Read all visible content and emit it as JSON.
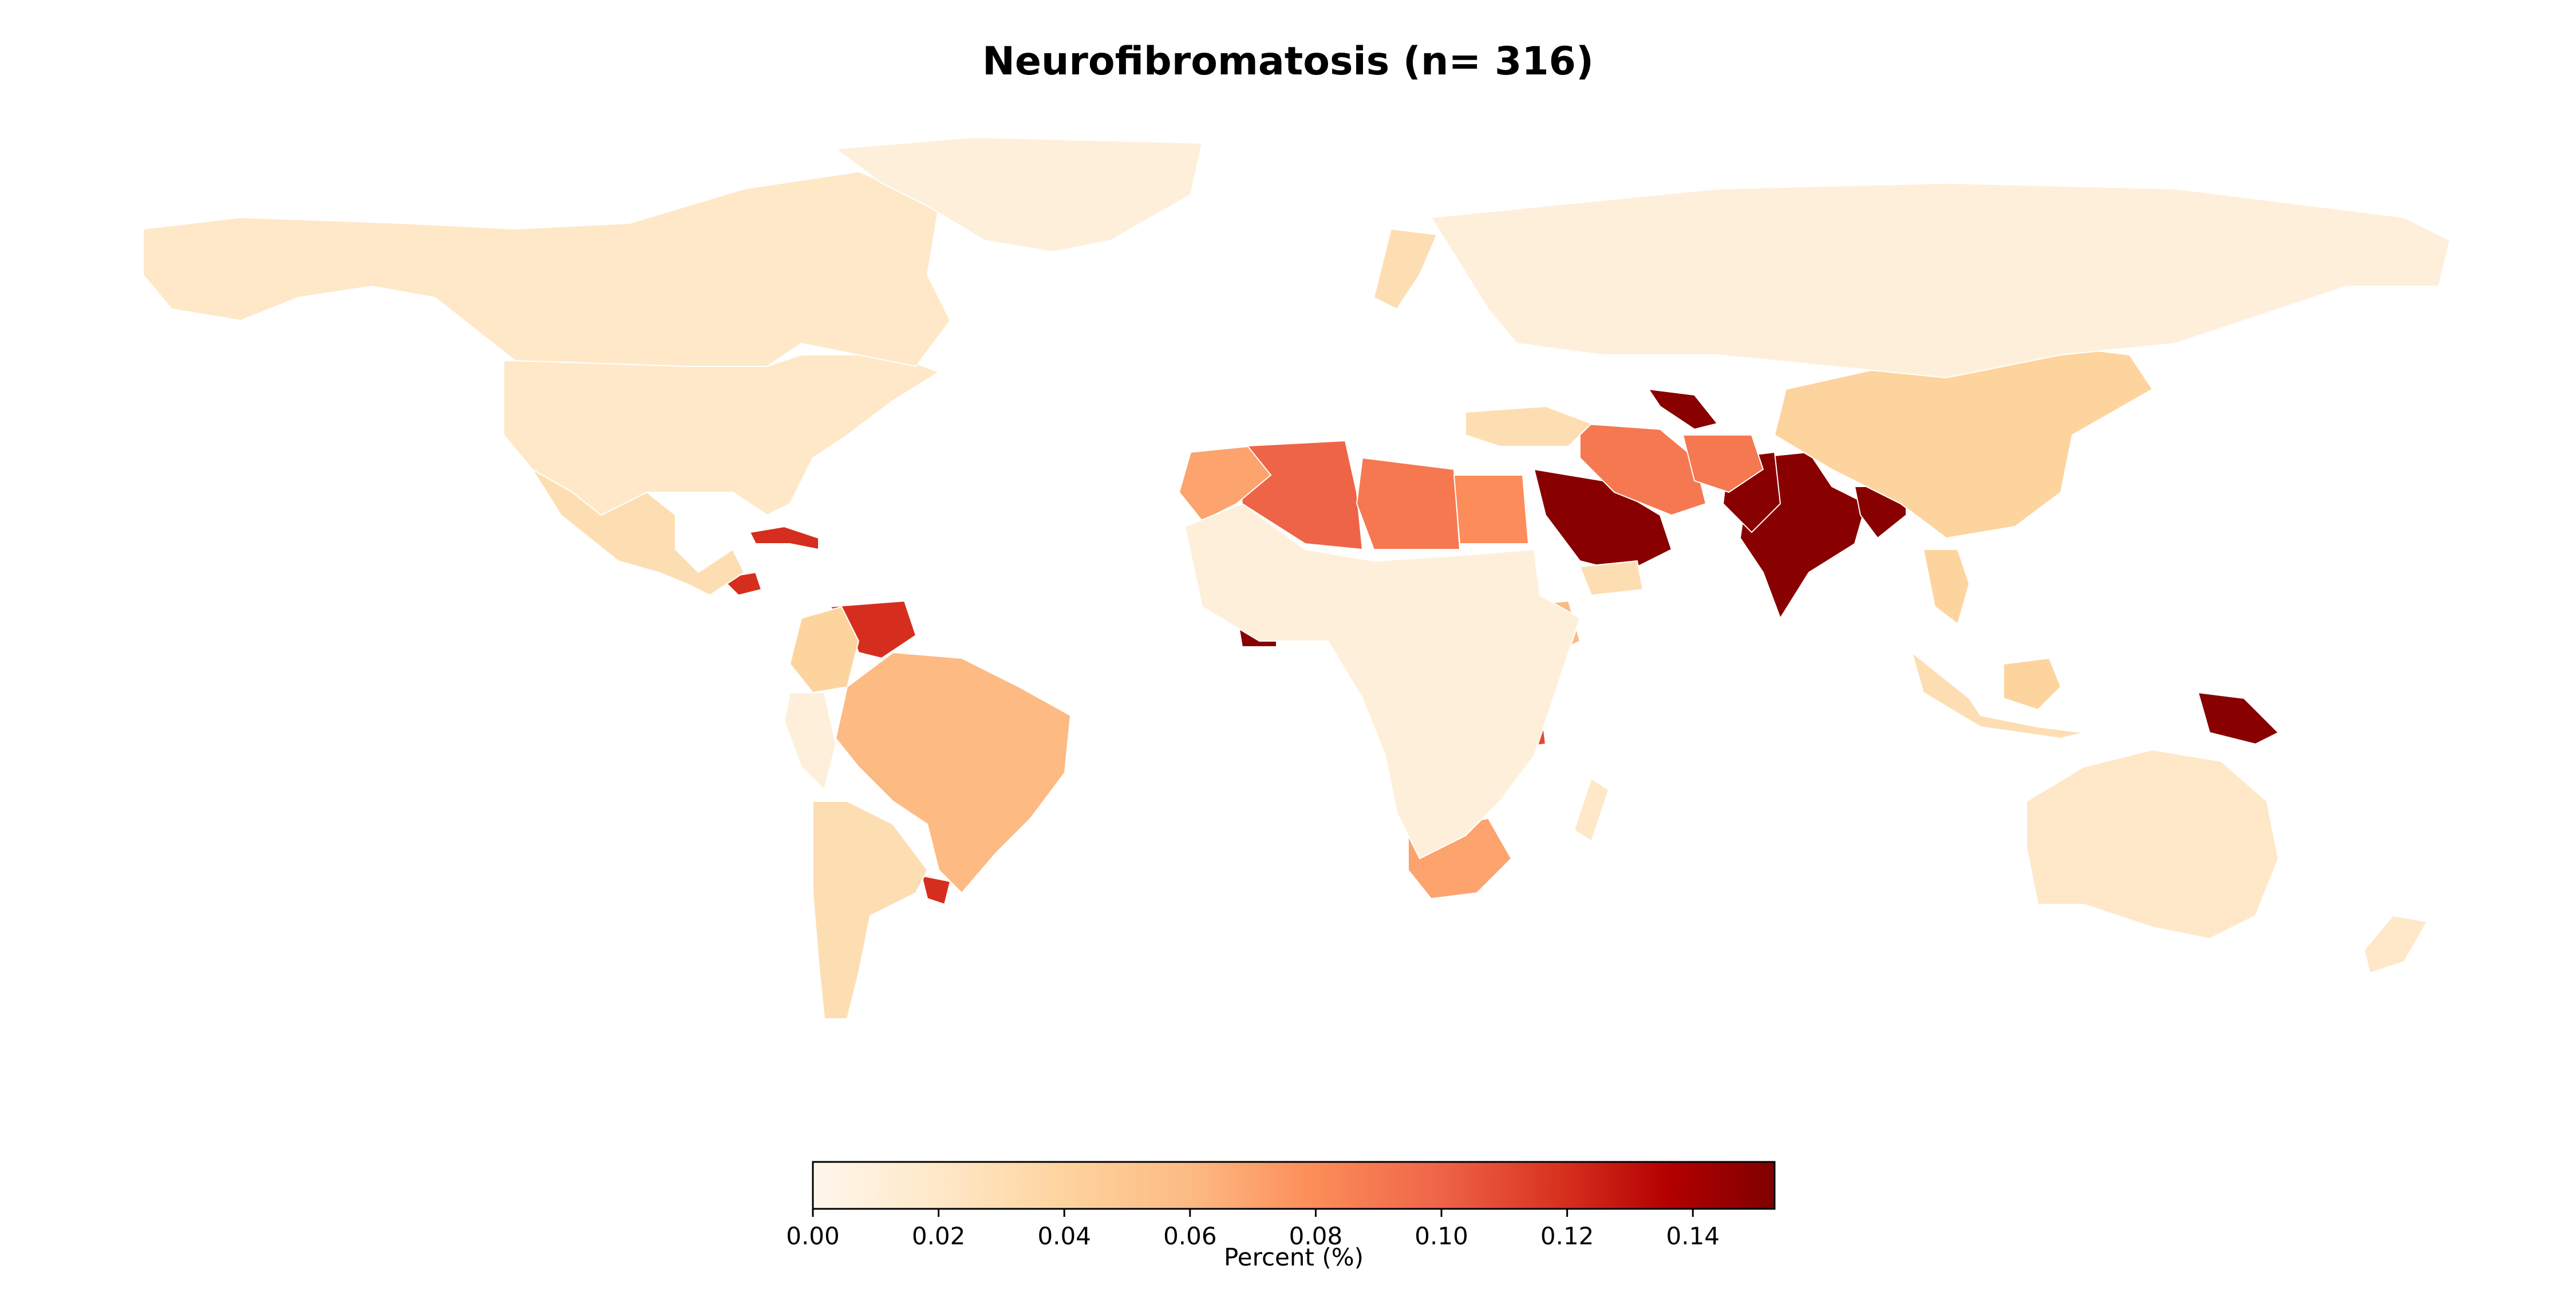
{
  "chart_data": {
    "type": "choropleth",
    "title": "Neurofibromatosis (n= 316)",
    "colorbar": {
      "label": "Percent (%)",
      "range": [
        0.0,
        0.153
      ],
      "ticks": [
        "0.00",
        "0.02",
        "0.04",
        "0.06",
        "0.08",
        "0.10",
        "0.12",
        "0.14"
      ],
      "tick_values": [
        0.0,
        0.02,
        0.04,
        0.06,
        0.08,
        0.1,
        0.12,
        0.14
      ],
      "colormap": "OrRd",
      "placement": "bottom-center"
    },
    "regions": [
      {
        "name": "India",
        "value": 0.15
      },
      {
        "name": "Pakistan",
        "value": 0.15
      },
      {
        "name": "Saudi Arabia",
        "value": 0.15
      },
      {
        "name": "Papua New Guinea",
        "value": 0.15
      },
      {
        "name": "Cameroon",
        "value": 0.15
      },
      {
        "name": "Côte d'Ivoire",
        "value": 0.15
      },
      {
        "name": "Uzbekistan",
        "value": 0.15
      },
      {
        "name": "Bangladesh",
        "value": 0.15
      },
      {
        "name": "Nigeria",
        "value": 0.13
      },
      {
        "name": "Uruguay",
        "value": 0.12
      },
      {
        "name": "Venezuela",
        "value": 0.12
      },
      {
        "name": "Cuba",
        "value": 0.12
      },
      {
        "name": "Honduras",
        "value": 0.12
      },
      {
        "name": "Tanzania",
        "value": 0.11
      },
      {
        "name": "Algeria",
        "value": 0.1
      },
      {
        "name": "Libya",
        "value": 0.09
      },
      {
        "name": "Iran",
        "value": 0.09
      },
      {
        "name": "Afghanistan",
        "value": 0.09
      },
      {
        "name": "Egypt",
        "value": 0.08
      },
      {
        "name": "Morocco",
        "value": 0.07
      },
      {
        "name": "South Africa",
        "value": 0.07
      },
      {
        "name": "Brazil",
        "value": 0.06
      },
      {
        "name": "Ethiopia",
        "value": 0.06
      },
      {
        "name": "China",
        "value": 0.04
      },
      {
        "name": "Colombia",
        "value": 0.04
      },
      {
        "name": "Thailand",
        "value": 0.04
      },
      {
        "name": "Borneo (Malaysia/Indonesia)",
        "value": 0.04
      },
      {
        "name": "Kenya",
        "value": 0.04
      },
      {
        "name": "Yemen",
        "value": 0.03
      },
      {
        "name": "Turkey",
        "value": 0.03
      },
      {
        "name": "Sweden",
        "value": 0.03
      },
      {
        "name": "Mexico",
        "value": 0.03
      },
      {
        "name": "Argentina",
        "value": 0.03
      },
      {
        "name": "Indonesia",
        "value": 0.03
      },
      {
        "name": "Australia",
        "value": 0.02
      },
      {
        "name": "United States",
        "value": 0.02
      },
      {
        "name": "Canada",
        "value": 0.02
      },
      {
        "name": "New Zealand",
        "value": 0.02
      },
      {
        "name": "Russia",
        "value": 0.01
      },
      {
        "name": "Greenland",
        "value": 0.01
      },
      {
        "name": "Peru",
        "value": 0.01
      },
      {
        "name": "Sub-Saharan Africa (other)",
        "value": 0.01
      },
      {
        "name": "Madagascar",
        "value": 0.02
      }
    ]
  }
}
